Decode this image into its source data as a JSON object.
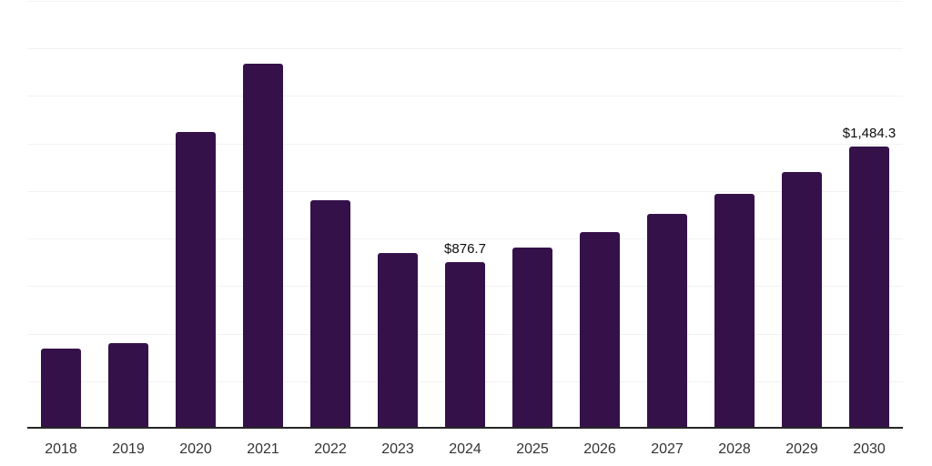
{
  "chart_data": {
    "type": "bar",
    "title": "",
    "xlabel": "",
    "ylabel": "",
    "categories": [
      "2018",
      "2019",
      "2020",
      "2021",
      "2022",
      "2023",
      "2024",
      "2025",
      "2026",
      "2027",
      "2028",
      "2029",
      "2030"
    ],
    "values": [
      423,
      452,
      1561,
      1922,
      1200,
      923,
      876.7,
      952,
      1035,
      1131,
      1236,
      1351,
      1484.3
    ],
    "annotations": [
      {
        "index": 6,
        "text": "$876.7"
      },
      {
        "index": 12,
        "text": "$1,484.3"
      }
    ],
    "ylim": [
      0,
      2250
    ],
    "gridline_step": 250,
    "grid": "horizontal-only",
    "legend": "none",
    "colors": {
      "bar": "#35114A",
      "grid": "#F2F2F2",
      "axis": "#262626",
      "tick_label": "#333333",
      "data_label": "#0D0D0D",
      "background": "#FFFFFF"
    }
  }
}
